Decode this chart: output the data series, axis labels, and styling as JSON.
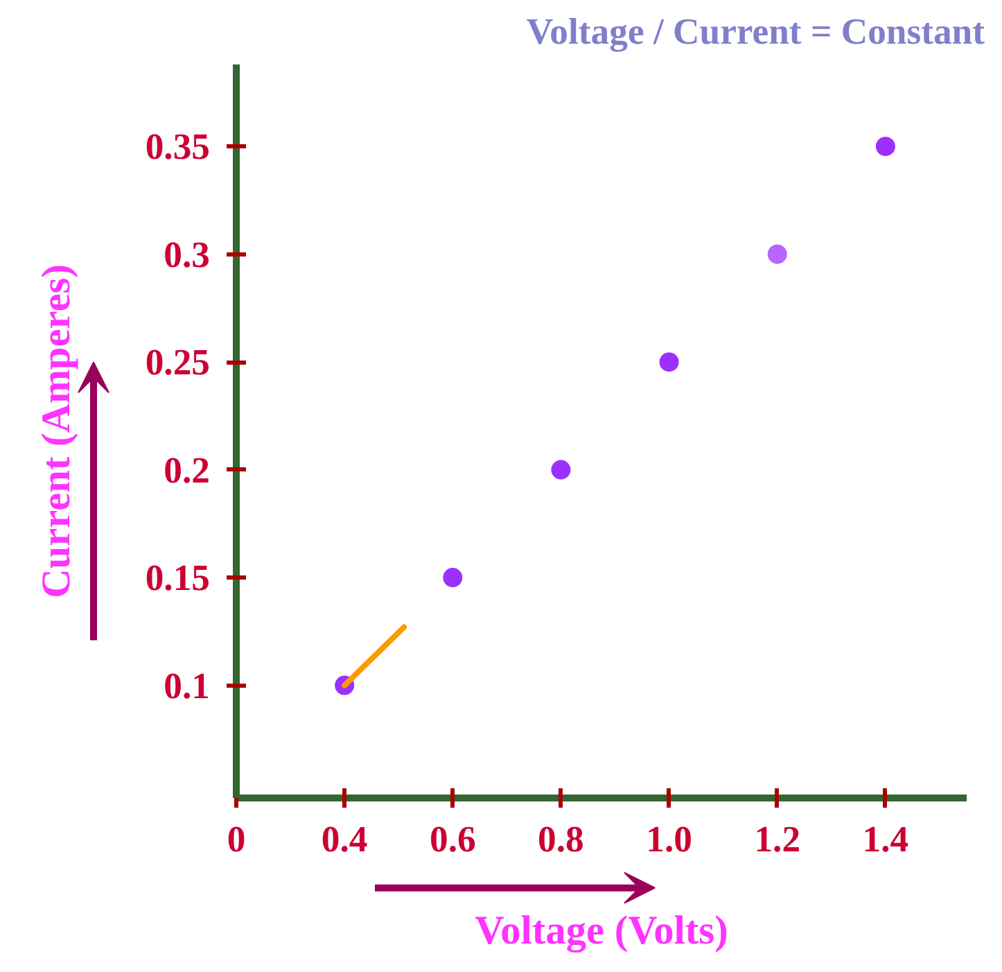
{
  "chart_data": {
    "type": "scatter",
    "title": "Voltage / Current = Constant",
    "xlabel": "Voltage (Volts)",
    "ylabel": "Current (Amperes)",
    "x": [
      0.4,
      0.6,
      0.8,
      1.0,
      1.2,
      1.4
    ],
    "series": [
      {
        "color": "#9b30ff",
        "colors": [
          "#9b30ff",
          "#9b30ff",
          "#9b30ff",
          "#9b30ff",
          "#b666ff",
          "#9b30ff"
        ],
        "values": [
          0.1,
          0.15,
          0.2,
          0.25,
          0.3,
          0.35
        ],
        "marker": "circle"
      },
      {
        "type": "line",
        "color": "#ff9900",
        "x": [
          0.4,
          0.51
        ],
        "values": [
          0.1,
          0.127
        ]
      }
    ],
    "xlim": [
      0.2,
      1.55
    ],
    "ylim": [
      0.048,
      0.388
    ],
    "xticks": [
      {
        "value": 0.2,
        "label": "0"
      },
      0.4,
      0.6,
      0.8,
      {
        "value": 1.0,
        "label": "1.0"
      },
      1.2,
      1.4
    ],
    "yticks": [
      0.1,
      0.15,
      0.2,
      0.25,
      0.3,
      0.35
    ],
    "grid": false
  }
}
